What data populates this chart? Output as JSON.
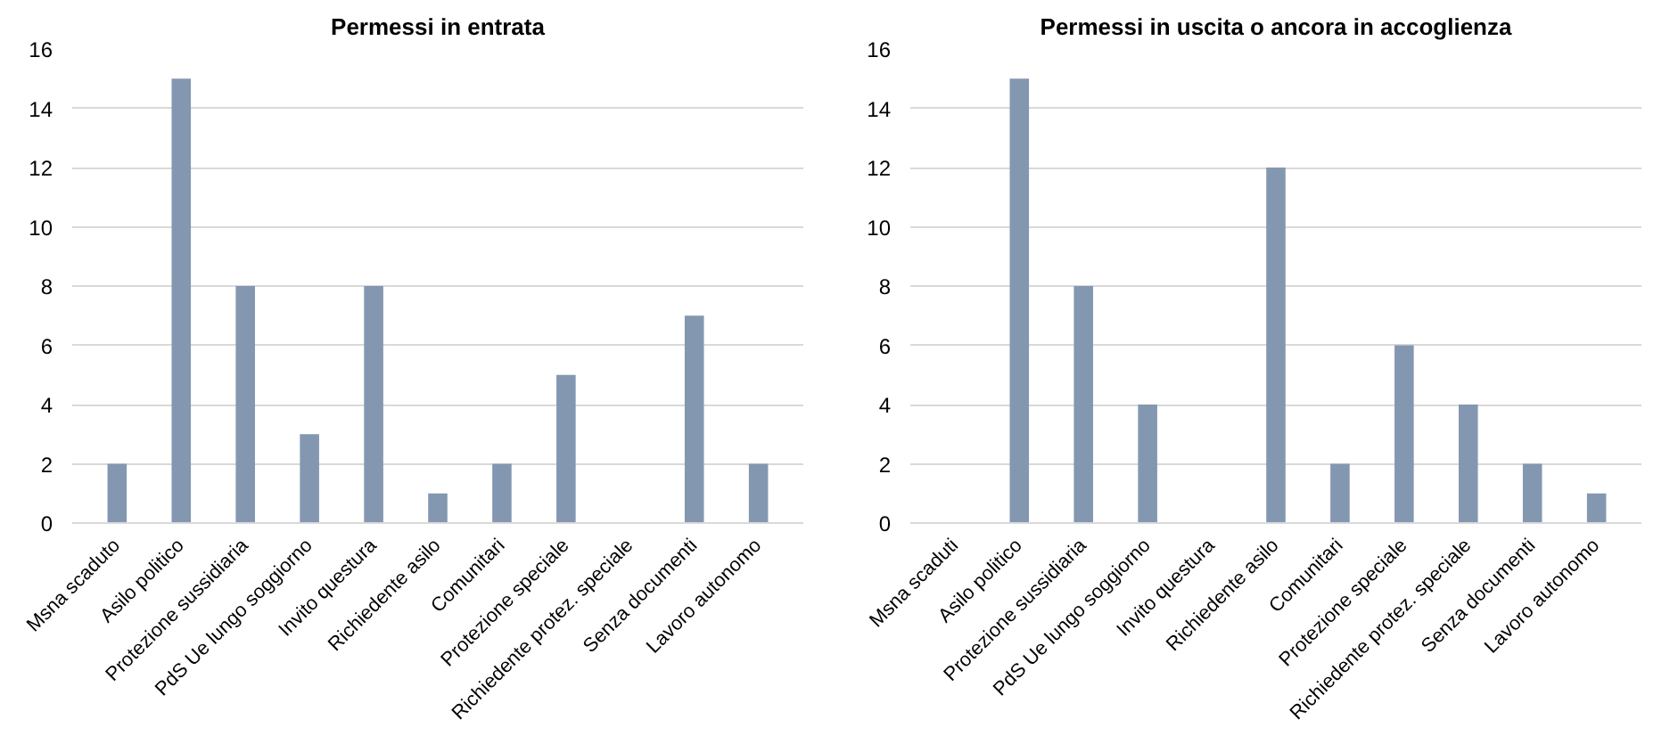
{
  "chart_data": [
    {
      "type": "bar",
      "title": "Permessi in entrata",
      "categories": [
        "Msna scaduto",
        "Asilo politico",
        "Protezione sussidiaria",
        "PdS Ue lungo soggiorno",
        "Invito questura",
        "Richiedente asilo",
        "Comunitari",
        "Protezione speciale",
        "Richiedente protez. speciale",
        "Senza documenti",
        "Lavoro autonomo"
      ],
      "values": [
        2,
        15,
        8,
        3,
        8,
        1,
        2,
        5,
        0,
        7,
        2
      ],
      "color": "#8497b0",
      "ylim": [
        0,
        16
      ],
      "yticks": [
        0,
        2,
        4,
        6,
        8,
        10,
        12,
        14,
        16
      ],
      "grid": "y"
    },
    {
      "type": "bar",
      "title": "Permessi in uscita o ancora in accoglienza",
      "categories": [
        "Msna scaduti",
        "Asilo politico",
        "Protezione sussidiaria",
        "PdS Ue lungo soggiorno",
        "Invito questura",
        "Richiedente asilo",
        "Comunitari",
        "Protezione speciale",
        "Richiedente protez. speciale",
        "Senza documenti",
        "Lavoro autonomo"
      ],
      "values": [
        0,
        15,
        8,
        4,
        0,
        12,
        2,
        6,
        4,
        2,
        1
      ],
      "color": "#8497b0",
      "ylim": [
        0,
        16
      ],
      "yticks": [
        0,
        2,
        4,
        6,
        8,
        10,
        12,
        14,
        16
      ],
      "grid": "y"
    }
  ]
}
